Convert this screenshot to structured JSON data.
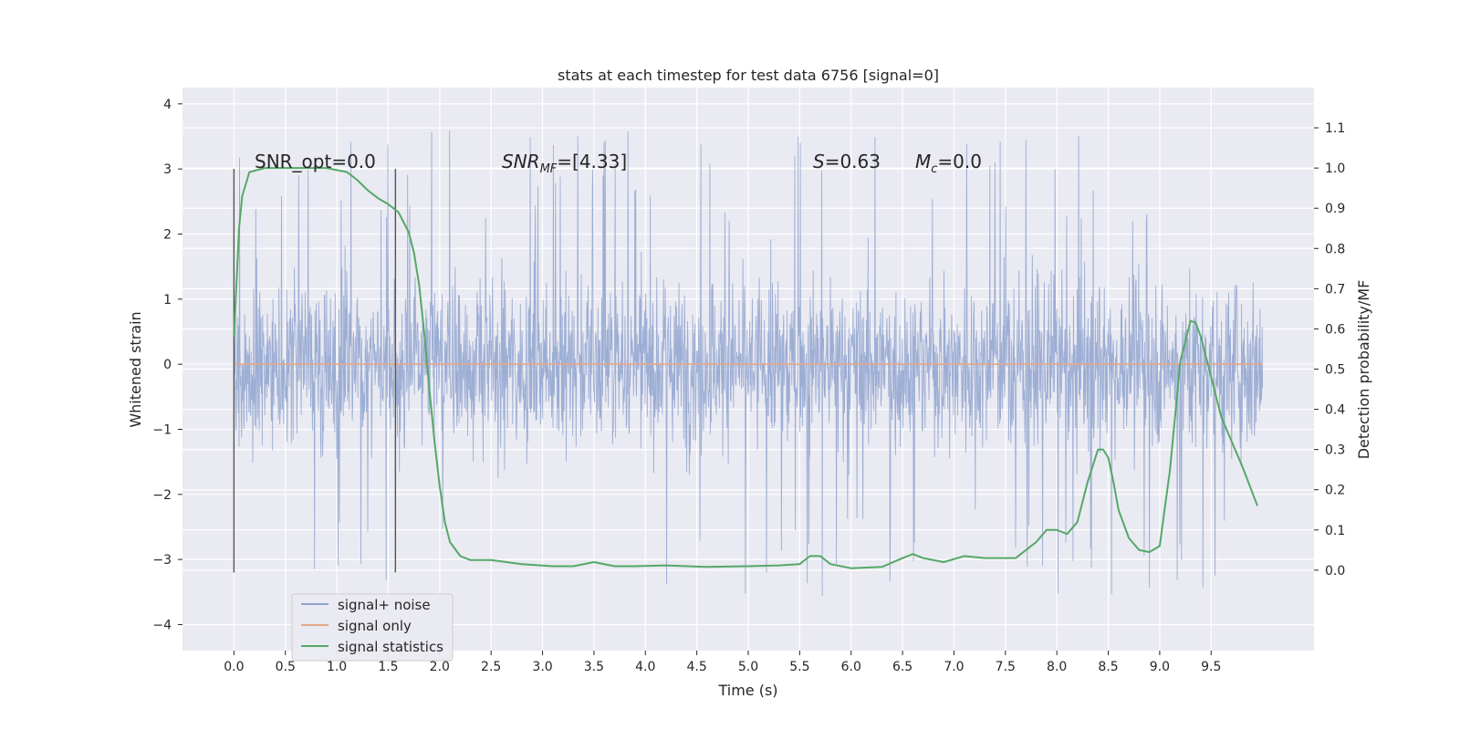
{
  "chart_data": {
    "type": "line",
    "title": "stats at each timestep for test data 6756 [signal=0]",
    "xlabel": "Time (s)",
    "ylabel_left": "Whitened strain",
    "ylabel_right": "Detection probability/MF",
    "xlim": [
      -0.5,
      10.5
    ],
    "ylim_left": [
      -4.4,
      4.25
    ],
    "ylim_right": [
      -0.2,
      1.2
    ],
    "x_ticks": [
      "0.0",
      "0.5",
      "1.0",
      "1.5",
      "2.0",
      "2.5",
      "3.0",
      "3.5",
      "4.0",
      "4.5",
      "5.0",
      "5.5",
      "6.0",
      "6.5",
      "7.0",
      "7.5",
      "8.0",
      "8.5",
      "9.0",
      "9.5"
    ],
    "y_ticks_left": [
      "−4",
      "−3",
      "−2",
      "−1",
      "0",
      "1",
      "2",
      "3",
      "4"
    ],
    "y_ticks_right": [
      "0.0",
      "0.1",
      "0.2",
      "0.3",
      "0.4",
      "0.5",
      "0.6",
      "0.7",
      "0.8",
      "0.9",
      "1.0",
      "1.1"
    ],
    "grid": true,
    "legend_position": "lower-left",
    "annotations": {
      "snr_opt": "SNR_opt=0.0",
      "snr_mf_main": "SNR",
      "snr_mf_sub": "MF",
      "snr_mf_value": "=[4.33]",
      "s_value": "S=0.63",
      "mc_main": "M",
      "mc_sub": "c",
      "mc_value": "=0.0"
    },
    "window_markers_x": [
      0.0,
      1.57
    ],
    "series": [
      {
        "name": "signal+ noise",
        "axis": "left",
        "color": "#8fa3cf",
        "x_range": [
          0.0,
          10.0
        ],
        "band_upper": 1.15,
        "band_lower": -1.35,
        "extremes_max": 3.85,
        "extremes_min": -4.05
      },
      {
        "name": "signal only",
        "axis": "left",
        "color": "#e2a98b",
        "x": [
          0.0,
          10.0
        ],
        "y": [
          0.0,
          0.0
        ]
      },
      {
        "name": "signal statistics",
        "axis": "right",
        "color": "#55a868",
        "x": [
          0.0,
          0.05,
          0.08,
          0.15,
          0.3,
          0.6,
          0.9,
          1.1,
          1.2,
          1.3,
          1.4,
          1.5,
          1.6,
          1.7,
          1.75,
          1.8,
          1.85,
          1.9,
          1.95,
          2.0,
          2.05,
          2.1,
          2.2,
          2.3,
          2.5,
          2.8,
          3.1,
          3.3,
          3.5,
          3.7,
          3.9,
          4.2,
          4.6,
          5.0,
          5.3,
          5.5,
          5.6,
          5.7,
          5.8,
          6.0,
          6.3,
          6.5,
          6.6,
          6.7,
          6.9,
          7.1,
          7.3,
          7.6,
          7.8,
          7.9,
          8.0,
          8.1,
          8.2,
          8.3,
          8.4,
          8.45,
          8.5,
          8.55,
          8.6,
          8.7,
          8.8,
          8.9,
          9.0,
          9.1,
          9.2,
          9.3,
          9.35,
          9.4,
          9.5,
          9.6,
          9.8,
          9.95
        ],
        "y": [
          0.58,
          0.85,
          0.93,
          0.99,
          1.0,
          1.0,
          1.0,
          0.99,
          0.97,
          0.945,
          0.925,
          0.91,
          0.89,
          0.84,
          0.79,
          0.71,
          0.59,
          0.45,
          0.32,
          0.21,
          0.12,
          0.07,
          0.035,
          0.025,
          0.025,
          0.015,
          0.01,
          0.01,
          0.02,
          0.01,
          0.01,
          0.012,
          0.008,
          0.01,
          0.012,
          0.015,
          0.035,
          0.035,
          0.015,
          0.005,
          0.008,
          0.03,
          0.04,
          0.03,
          0.02,
          0.035,
          0.03,
          0.03,
          0.07,
          0.1,
          0.1,
          0.09,
          0.12,
          0.22,
          0.3,
          0.3,
          0.28,
          0.22,
          0.15,
          0.08,
          0.05,
          0.045,
          0.06,
          0.25,
          0.52,
          0.62,
          0.615,
          0.58,
          0.48,
          0.38,
          0.26,
          0.16
        ]
      }
    ]
  }
}
